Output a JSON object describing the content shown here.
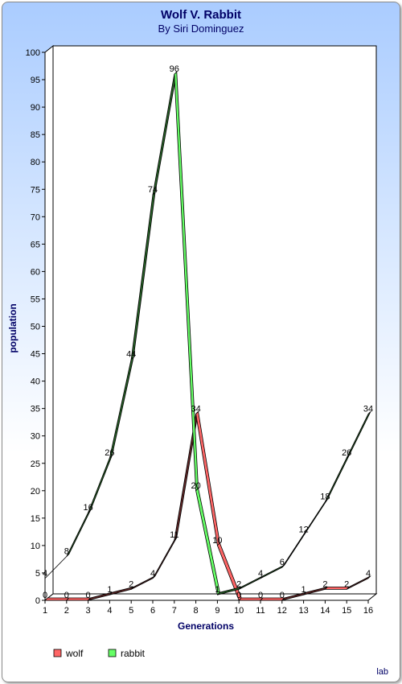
{
  "chart_data": {
    "type": "line",
    "title": "Wolf V. Rabbit",
    "subtitle": "By Siri Dominguez",
    "xlabel": "Generations",
    "ylabel": "population",
    "x": [
      1,
      2,
      3,
      4,
      5,
      6,
      7,
      8,
      9,
      10,
      11,
      12,
      13,
      14,
      15,
      16
    ],
    "ylim": [
      0,
      100
    ],
    "ytick_step": 5,
    "grid": false,
    "legend_position": "bottom-left",
    "series": [
      {
        "name": "wolf",
        "color": "#ff6666",
        "values": [
          0,
          0,
          0,
          1,
          2,
          4,
          11,
          34,
          10,
          0,
          0,
          0,
          1,
          2,
          2,
          4
        ]
      },
      {
        "name": "rabbit",
        "color": "#66ff66",
        "values": [
          4,
          8,
          16,
          26,
          44,
          74,
          96,
          20,
          1,
          2,
          4,
          6,
          12,
          18,
          26,
          34
        ]
      }
    ],
    "footer_text": "lab"
  }
}
